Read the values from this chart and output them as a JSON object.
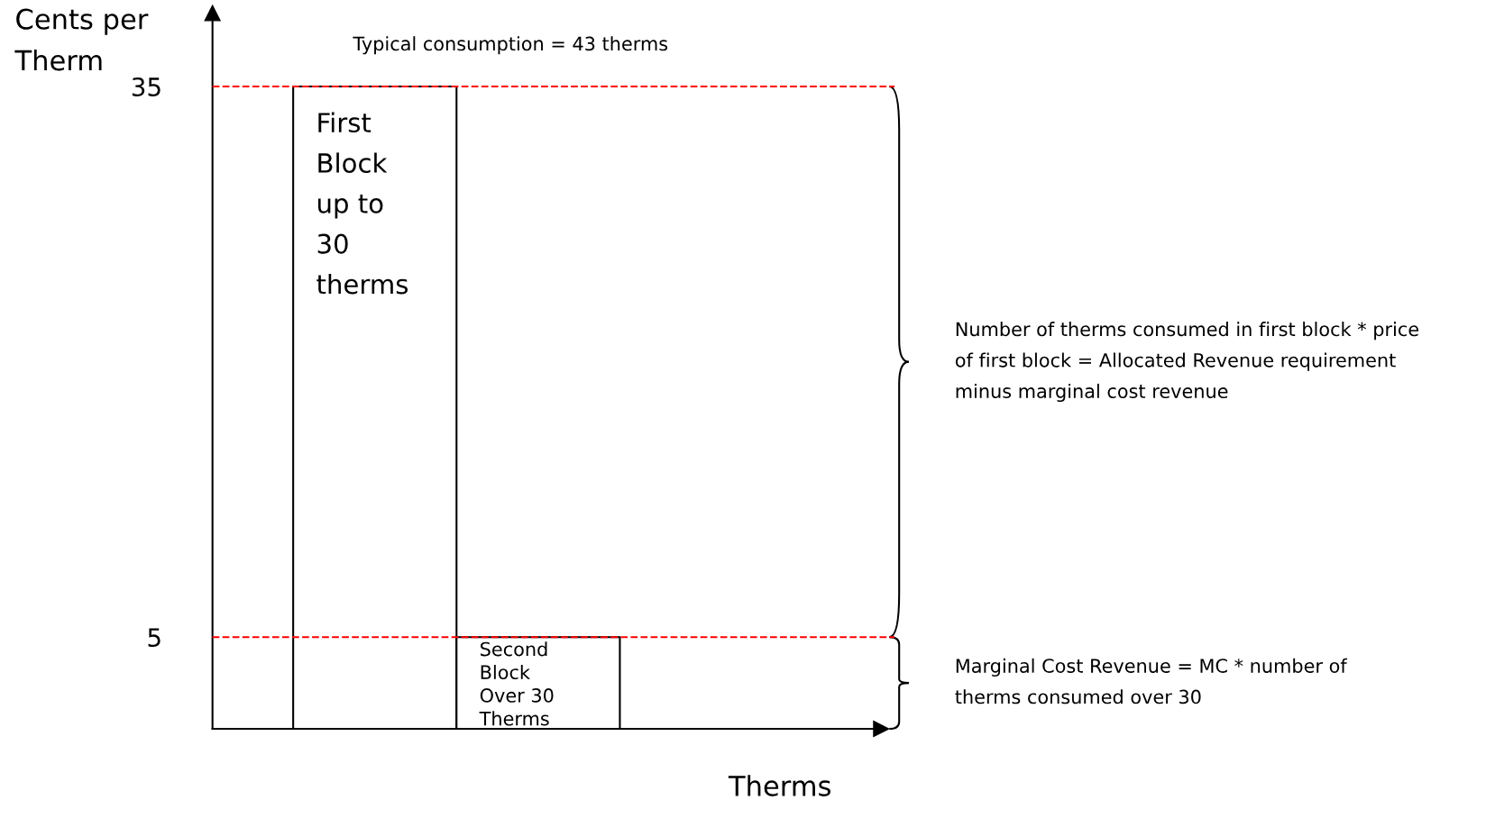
{
  "chart_data": {
    "type": "bar",
    "ylabel": "Cents per\nTherm",
    "xlabel": "Therms",
    "categories": [
      null,
      null
    ],
    "values": [
      35,
      5
    ],
    "color": "#ffffff",
    "ylim": [
      0,
      39
    ],
    "yticks": [
      5,
      35
    ],
    "grid": false,
    "ref_lines": [
      {
        "axis": "y",
        "value": 35,
        "color": "#ff0000",
        "line_style": "dashed"
      },
      {
        "axis": "y",
        "value": 5,
        "color": "#ff0000",
        "line_style": "dashed"
      }
    ],
    "annotations": [
      "Typical consumption = 43 therms",
      {
        "text": "First\nBlock\nup to\n30\ntherms",
        "y": 35
      },
      {
        "text": "Second\nBlock\nOver 30\nTherms",
        "y": 5
      },
      "Number of therms consumed in first block * price\nof first block = Allocated Revenue requirement\nminus marginal cost revenue",
      "Marginal Cost Revenue = MC * number of\ntherms consumed over 30"
    ]
  }
}
